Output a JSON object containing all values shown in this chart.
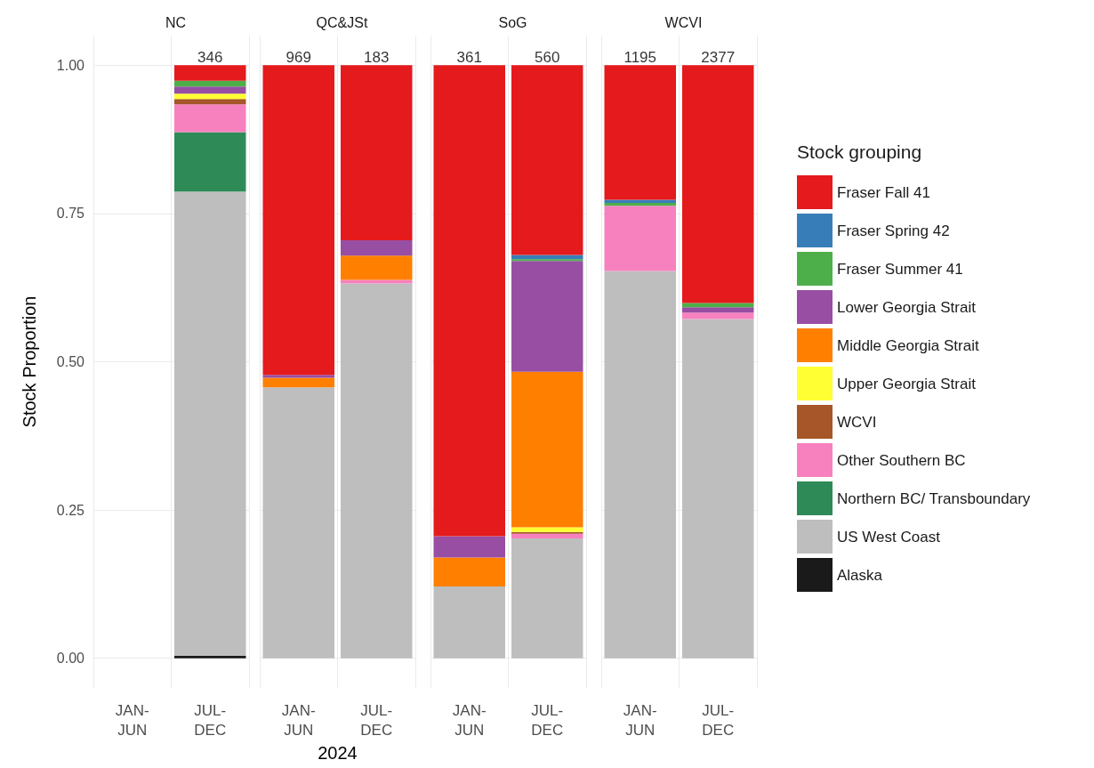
{
  "chart_data": [
    {
      "type": "bar",
      "title": "NC",
      "ylabel": "Stock Proportion",
      "categories": [
        "JAN-\nJUN",
        "JUL-\nDEC"
      ],
      "stacked": true,
      "ylim": [
        -0.05,
        1.05
      ],
      "yticks": [
        {
          "value": 0,
          "label": "0.00"
        },
        {
          "value": 0.25,
          "label": "0.25"
        },
        {
          "value": 0.5,
          "label": "0.50"
        },
        {
          "value": 0.75,
          "label": "0.75"
        },
        {
          "value": 1,
          "label": "1.00"
        }
      ],
      "grid": true,
      "legend": false,
      "annotations": [
        {
          "text": "346",
          "x": "JUL-\nDEC",
          "y": 1
        }
      ],
      "series": [
        {
          "color": "#1a1a1a",
          "values": [
            null,
            0.004
          ]
        },
        {
          "color": "#bebebe",
          "values": [
            null,
            0.783
          ]
        },
        {
          "color": "#2e8b57",
          "values": [
            null,
            0.1
          ]
        },
        {
          "color": "#f781bf",
          "values": [
            null,
            0.047
          ]
        },
        {
          "color": "#a65628",
          "values": [
            null,
            0.009
          ]
        },
        {
          "color": "#ffff33",
          "values": [
            null,
            0.009
          ]
        },
        {
          "color": "#ff7f00",
          "values": [
            null,
            null
          ]
        },
        {
          "color": "#984ea3",
          "values": [
            null,
            0.012
          ]
        },
        {
          "color": "#4daf4a",
          "values": [
            null,
            0.01
          ]
        },
        {
          "color": "#377eb8",
          "values": [
            null,
            null
          ]
        },
        {
          "color": "#e41a1c",
          "values": [
            null,
            0.026
          ]
        }
      ]
    },
    {
      "type": "bar",
      "title": "QC&JSt",
      "xlabel": "2024",
      "categories": [
        "JAN-\nJUN",
        "JUL-\nDEC"
      ],
      "stacked": true,
      "ylim": [
        -0.05,
        1.05
      ],
      "yticks": [
        {
          "value": 0,
          "label": null
        },
        {
          "value": 0.25,
          "label": null
        },
        {
          "value": 0.5,
          "label": null
        },
        {
          "value": 0.75,
          "label": null
        },
        {
          "value": 1,
          "label": null
        }
      ],
      "tick_labels": "x",
      "grid": true,
      "legend": false,
      "annotations": [
        {
          "text": "969",
          "x": "JAN-\nJUN",
          "y": 1
        },
        {
          "text": "183",
          "x": "JUL-\nDEC",
          "y": 1
        }
      ],
      "series": [
        {
          "color": "#1a1a1a",
          "values": [
            null,
            null
          ]
        },
        {
          "color": "#bebebe",
          "values": [
            0.457,
            0.632
          ]
        },
        {
          "color": "#2e8b57",
          "values": [
            null,
            null
          ]
        },
        {
          "color": "#f781bf",
          "values": [
            null,
            0.006
          ]
        },
        {
          "color": "#a65628",
          "values": [
            null,
            null
          ]
        },
        {
          "color": "#ffff33",
          "values": [
            null,
            null
          ]
        },
        {
          "color": "#ff7f00",
          "values": [
            0.016,
            0.041
          ]
        },
        {
          "color": "#984ea3",
          "values": [
            0.005,
            0.026
          ]
        },
        {
          "color": "#4daf4a",
          "values": [
            null,
            null
          ]
        },
        {
          "color": "#377eb8",
          "values": [
            null,
            null
          ]
        },
        {
          "color": "#e41a1c",
          "values": [
            0.522,
            0.295
          ]
        }
      ]
    },
    {
      "type": "bar",
      "title": "SoG",
      "categories": [
        "JAN-\nJUN",
        "JUL-\nDEC"
      ],
      "stacked": true,
      "ylim": [
        -0.05,
        1.05
      ],
      "yticks": [
        {
          "value": 0,
          "label": null
        },
        {
          "value": 0.25,
          "label": null
        },
        {
          "value": 0.5,
          "label": null
        },
        {
          "value": 0.75,
          "label": null
        },
        {
          "value": 1,
          "label": null
        }
      ],
      "tick_labels": "x",
      "grid": true,
      "legend": false,
      "annotations": [
        {
          "text": "361",
          "x": "JAN-\nJUN",
          "y": 1
        },
        {
          "text": "560",
          "x": "JUL-\nDEC",
          "y": 1
        }
      ],
      "series": [
        {
          "color": "#1a1a1a",
          "values": [
            null,
            null
          ]
        },
        {
          "color": "#bebebe",
          "values": [
            0.121,
            0.202
          ]
        },
        {
          "color": "#2e8b57",
          "values": [
            null,
            null
          ]
        },
        {
          "color": "#f781bf",
          "values": [
            null,
            0.008
          ]
        },
        {
          "color": "#a65628",
          "values": [
            null,
            0.003
          ]
        },
        {
          "color": "#ffff33",
          "values": [
            null,
            0.008
          ]
        },
        {
          "color": "#ff7f00",
          "values": [
            0.049,
            0.262
          ]
        },
        {
          "color": "#984ea3",
          "values": [
            0.036,
            0.187
          ]
        },
        {
          "color": "#4daf4a",
          "values": [
            null,
            0.003
          ]
        },
        {
          "color": "#377eb8",
          "values": [
            null,
            0.007
          ]
        },
        {
          "color": "#e41a1c",
          "values": [
            0.794,
            0.32
          ]
        }
      ]
    },
    {
      "type": "bar",
      "title": "WCVI",
      "legend_title": "Stock grouping",
      "categories": [
        "JAN-\nJUN",
        "JUL-\nDEC"
      ],
      "stacked": true,
      "ylim": [
        -0.05,
        1.05
      ],
      "yticks": [
        {
          "value": 0,
          "label": null
        },
        {
          "value": 0.25,
          "label": null
        },
        {
          "value": 0.5,
          "label": null
        },
        {
          "value": 0.75,
          "label": null
        },
        {
          "value": 1,
          "label": null
        }
      ],
      "tick_labels": "x",
      "grid": true,
      "legend": "right",
      "annotations": [
        {
          "text": "1195",
          "x": "JAN-\nJUN",
          "y": 1
        },
        {
          "text": "2377",
          "x": "JUL-\nDEC",
          "y": 1
        }
      ],
      "series": [
        {
          "name": "Alaska",
          "color": "#1a1a1a",
          "values": [
            null,
            null
          ]
        },
        {
          "name": "US West Coast",
          "color": "#bebebe",
          "values": [
            0.653,
            0.572
          ]
        },
        {
          "name": "Northern BC/ Transboundary",
          "color": "#2e8b57",
          "values": [
            null,
            null
          ]
        },
        {
          "name": "Other Southern BC",
          "color": "#f781bf",
          "values": [
            0.11,
            0.011
          ]
        },
        {
          "name": "WCVI",
          "color": "#a65628",
          "values": [
            null,
            null
          ]
        },
        {
          "name": "Upper Georgia Strait",
          "color": "#ffff33",
          "values": [
            null,
            null
          ]
        },
        {
          "name": "Middle Georgia Strait",
          "color": "#ff7f00",
          "values": [
            null,
            null
          ]
        },
        {
          "name": "Lower Georgia Strait",
          "color": "#984ea3",
          "values": [
            null,
            0.009
          ]
        },
        {
          "name": "Fraser Summer 41",
          "color": "#4daf4a",
          "values": [
            0.005,
            0.007
          ]
        },
        {
          "name": "Fraser Spring 42",
          "color": "#377eb8",
          "values": [
            0.005,
            null
          ]
        },
        {
          "name": "Fraser Fall 41",
          "color": "#e41a1c",
          "values": [
            0.227,
            0.401
          ]
        }
      ]
    }
  ]
}
